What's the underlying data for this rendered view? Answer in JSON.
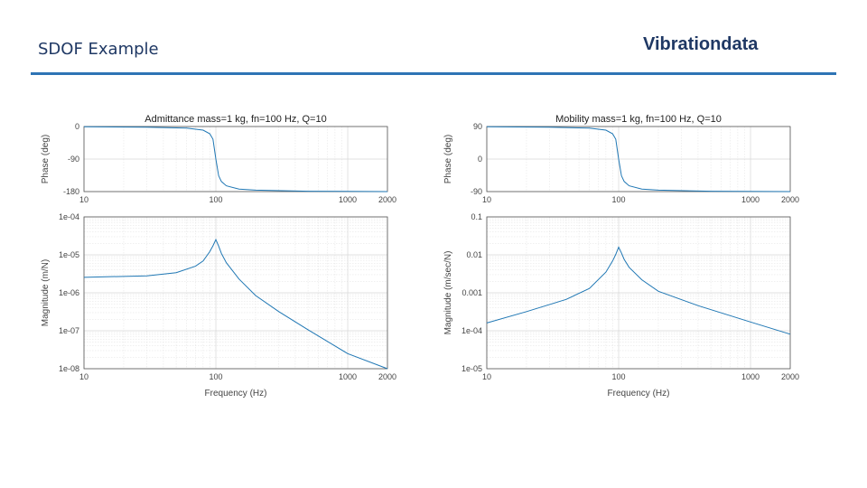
{
  "header": {
    "title": "SDOF Example",
    "brand": "Vibrationdata",
    "accent_color": "#2e74b5"
  },
  "chart_data": [
    {
      "type": "line",
      "panel": "admittance-phase",
      "title": "Admittance mass=1 kg, fn=100 Hz, Q=10",
      "xlabel": "",
      "ylabel": "Phase (deg)",
      "xscale": "log",
      "xlim": [
        10,
        2000
      ],
      "ylim": [
        -180,
        0
      ],
      "xticks": [
        10,
        100,
        1000,
        2000
      ],
      "xtick_labels": [
        "10",
        "100",
        "1000",
        "2000"
      ],
      "yticks": [
        0,
        -90,
        -180
      ],
      "ytick_labels": [
        "0",
        "-90",
        "-180"
      ],
      "grid": true,
      "series": [
        {
          "x": [
            10,
            30,
            60,
            80,
            90,
            95,
            100,
            105,
            110,
            120,
            150,
            200,
            500,
            2000
          ],
          "y": [
            -0.6,
            -2,
            -4.5,
            -10,
            -20,
            -35,
            -90,
            -136,
            -152,
            -164,
            -173,
            -176,
            -179,
            -180
          ]
        }
      ]
    },
    {
      "type": "line",
      "panel": "admittance-magnitude",
      "title": "",
      "xlabel": "Frequency (Hz)",
      "ylabel": "Magnitude (m/N)",
      "xscale": "log",
      "yscale": "log",
      "xlim": [
        10,
        2000
      ],
      "ylim": [
        1e-08,
        0.0001
      ],
      "xticks": [
        10,
        100,
        1000,
        2000
      ],
      "xtick_labels": [
        "10",
        "100",
        "1000",
        "2000"
      ],
      "yticks": [
        0.0001,
        1e-05,
        1e-06,
        1e-07,
        1e-08
      ],
      "ytick_labels": [
        "1e-04",
        "1e-05",
        "1e-06",
        "1e-07",
        "1e-08"
      ],
      "grid": true,
      "series": [
        {
          "x": [
            10,
            30,
            50,
            70,
            80,
            90,
            95,
            100,
            105,
            110,
            120,
            150,
            200,
            300,
            500,
            1000,
            2000
          ],
          "y": [
            2.55e-06,
            2.8e-06,
            3.4e-06,
            5e-06,
            6.9e-06,
            1.22e-05,
            1.73e-05,
            2.53e-05,
            1.7e-05,
            1.1e-05,
            6.2e-06,
            2.3e-06,
            8.5e-07,
            3.2e-07,
            1.06e-07,
            2.5e-08,
            6.4e-09
          ]
        }
      ]
    },
    {
      "type": "line",
      "panel": "mobility-phase",
      "title": "Mobility mass=1 kg, fn=100 Hz, Q=10",
      "xlabel": "",
      "ylabel": "Phase (deg)",
      "xscale": "log",
      "xlim": [
        10,
        2000
      ],
      "ylim": [
        -90,
        90
      ],
      "xticks": [
        10,
        100,
        1000,
        2000
      ],
      "xtick_labels": [
        "10",
        "100",
        "1000",
        "2000"
      ],
      "yticks": [
        90,
        0,
        -90
      ],
      "ytick_labels": [
        "90",
        "0",
        "-90"
      ],
      "grid": true,
      "series": [
        {
          "x": [
            10,
            30,
            60,
            80,
            90,
            95,
            100,
            105,
            110,
            120,
            150,
            200,
            500,
            2000
          ],
          "y": [
            89.4,
            88,
            85.5,
            80,
            70,
            55,
            0,
            -46,
            -62,
            -74,
            -83,
            -86,
            -89,
            -90
          ]
        }
      ]
    },
    {
      "type": "line",
      "panel": "mobility-magnitude",
      "title": "",
      "xlabel": "Frequency (Hz)",
      "ylabel": "Magnitude (m/sec/N)",
      "xscale": "log",
      "yscale": "log",
      "xlim": [
        10,
        2000
      ],
      "ylim": [
        1e-05,
        0.1
      ],
      "xticks": [
        10,
        100,
        1000,
        2000
      ],
      "xtick_labels": [
        "10",
        "100",
        "1000",
        "2000"
      ],
      "yticks": [
        0.1,
        0.01,
        0.001,
        0.0001,
        1e-05
      ],
      "ytick_labels": [
        "0.1",
        "0.01",
        "0.001",
        "1e-04",
        "1e-05"
      ],
      "grid": true,
      "series": [
        {
          "x": [
            10,
            20,
            40,
            60,
            80,
            90,
            95,
            100,
            105,
            110,
            120,
            150,
            200,
            400,
            1000,
            2000
          ],
          "y": [
            0.00016,
            0.00032,
            0.00067,
            0.0013,
            0.0035,
            0.0069,
            0.0103,
            0.0159,
            0.0112,
            0.0076,
            0.0047,
            0.0022,
            0.0011,
            0.00046,
            0.00017,
            8.1e-05
          ]
        }
      ]
    }
  ]
}
